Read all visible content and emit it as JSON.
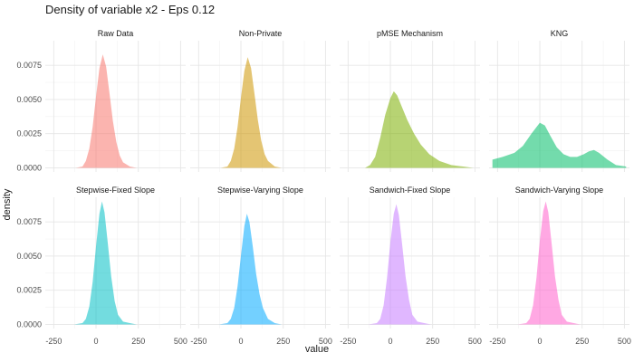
{
  "chart_data": {
    "type": "area",
    "title": "Density of variable x2 - Eps 0.12",
    "xlabel": "value",
    "ylabel": "density",
    "x_ticks": [
      -250,
      0,
      250,
      500
    ],
    "x_tick_labels": [
      "-250",
      "0",
      "250",
      "500"
    ],
    "y_ticks": [
      0,
      0.0025,
      0.005,
      0.0075
    ],
    "y_tick_labels": [
      "0.0000",
      "0.0025",
      "0.0050",
      "0.0075"
    ],
    "xlim": [
      -300,
      530
    ],
    "ylim": [
      -0.0003,
      0.0093
    ],
    "grid": true,
    "legend": "none",
    "facets": [
      {
        "label": "Raw Data",
        "color": "#F8766D",
        "points": [
          [
            -120,
            0
          ],
          [
            -80,
            0.0001
          ],
          [
            -60,
            0.0005
          ],
          [
            -40,
            0.0014
          ],
          [
            -20,
            0.003
          ],
          [
            0,
            0.0052
          ],
          [
            20,
            0.0073
          ],
          [
            40,
            0.0083
          ],
          [
            60,
            0.0074
          ],
          [
            80,
            0.0054
          ],
          [
            100,
            0.0034
          ],
          [
            120,
            0.0019
          ],
          [
            140,
            0.0009
          ],
          [
            160,
            0.0004
          ],
          [
            200,
            0.0001
          ],
          [
            240,
            0
          ]
        ]
      },
      {
        "label": "Non-Private",
        "color": "#CD9600",
        "points": [
          [
            -120,
            0
          ],
          [
            -80,
            0.0001
          ],
          [
            -60,
            0.0005
          ],
          [
            -40,
            0.0014
          ],
          [
            -20,
            0.003
          ],
          [
            0,
            0.0051
          ],
          [
            20,
            0.0071
          ],
          [
            40,
            0.0081
          ],
          [
            60,
            0.0073
          ],
          [
            80,
            0.0054
          ],
          [
            100,
            0.0035
          ],
          [
            120,
            0.002
          ],
          [
            140,
            0.001
          ],
          [
            160,
            0.0005
          ],
          [
            200,
            0.0001
          ],
          [
            240,
            0
          ]
        ]
      },
      {
        "label": "pMSE Mechanism",
        "color": "#7CAE00",
        "points": [
          [
            -150,
            0
          ],
          [
            -120,
            0.0002
          ],
          [
            -90,
            0.0008
          ],
          [
            -60,
            0.0022
          ],
          [
            -30,
            0.0039
          ],
          [
            0,
            0.0051
          ],
          [
            20,
            0.0056
          ],
          [
            40,
            0.0053
          ],
          [
            70,
            0.0044
          ],
          [
            100,
            0.0035
          ],
          [
            140,
            0.0025
          ],
          [
            180,
            0.0017
          ],
          [
            230,
            0.001
          ],
          [
            290,
            0.0005
          ],
          [
            360,
            0.0002
          ],
          [
            430,
            0.0001
          ],
          [
            490,
            0
          ]
        ]
      },
      {
        "label": "KNG",
        "color": "#00BE67",
        "points": [
          [
            -280,
            0.0006
          ],
          [
            -220,
            0.0008
          ],
          [
            -150,
            0.0011
          ],
          [
            -100,
            0.0016
          ],
          [
            -50,
            0.0025
          ],
          [
            0,
            0.0033
          ],
          [
            30,
            0.0031
          ],
          [
            60,
            0.0024
          ],
          [
            100,
            0.0015
          ],
          [
            140,
            0.001
          ],
          [
            180,
            0.0008
          ],
          [
            220,
            0.0008
          ],
          [
            260,
            0.001
          ],
          [
            290,
            0.0012
          ],
          [
            320,
            0.0013
          ],
          [
            350,
            0.0011
          ],
          [
            400,
            0.0006
          ],
          [
            450,
            0.0002
          ],
          [
            510,
            0.0001
          ]
        ]
      },
      {
        "label": "Stepwise-Fixed Slope",
        "color": "#00BFC4",
        "points": [
          [
            -130,
            0
          ],
          [
            -80,
            0.0001
          ],
          [
            -60,
            0.0004
          ],
          [
            -40,
            0.0013
          ],
          [
            -20,
            0.0031
          ],
          [
            0,
            0.0057
          ],
          [
            20,
            0.0081
          ],
          [
            35,
            0.009
          ],
          [
            50,
            0.0082
          ],
          [
            70,
            0.0059
          ],
          [
            90,
            0.0035
          ],
          [
            110,
            0.0017
          ],
          [
            130,
            0.0007
          ],
          [
            160,
            0.0002
          ],
          [
            200,
            0.0001
          ],
          [
            240,
            0
          ]
        ]
      },
      {
        "label": "Stepwise-Varying Slope",
        "color": "#00A9FF",
        "points": [
          [
            -130,
            0
          ],
          [
            -80,
            0.0001
          ],
          [
            -60,
            0.0004
          ],
          [
            -40,
            0.0012
          ],
          [
            -20,
            0.0028
          ],
          [
            0,
            0.005
          ],
          [
            20,
            0.0072
          ],
          [
            35,
            0.0081
          ],
          [
            50,
            0.0075
          ],
          [
            70,
            0.0057
          ],
          [
            90,
            0.0037
          ],
          [
            110,
            0.0022
          ],
          [
            130,
            0.0012
          ],
          [
            160,
            0.0004
          ],
          [
            200,
            0.0001
          ],
          [
            240,
            0
          ]
        ]
      },
      {
        "label": "Sandwich-Fixed Slope",
        "color": "#C77CFF",
        "points": [
          [
            -130,
            0
          ],
          [
            -80,
            0.0001
          ],
          [
            -60,
            0.0004
          ],
          [
            -40,
            0.0014
          ],
          [
            -20,
            0.0034
          ],
          [
            0,
            0.006
          ],
          [
            20,
            0.0081
          ],
          [
            35,
            0.0088
          ],
          [
            50,
            0.008
          ],
          [
            70,
            0.0058
          ],
          [
            90,
            0.0035
          ],
          [
            110,
            0.0018
          ],
          [
            130,
            0.0007
          ],
          [
            160,
            0.0002
          ],
          [
            200,
            0.0001
          ],
          [
            240,
            0
          ]
        ]
      },
      {
        "label": "Sandwich-Varying Slope",
        "color": "#FF61CC",
        "points": [
          [
            -130,
            0
          ],
          [
            -80,
            0.0001
          ],
          [
            -60,
            0.0004
          ],
          [
            -40,
            0.0014
          ],
          [
            -20,
            0.0034
          ],
          [
            0,
            0.0061
          ],
          [
            20,
            0.0083
          ],
          [
            35,
            0.009
          ],
          [
            50,
            0.0082
          ],
          [
            70,
            0.0059
          ],
          [
            90,
            0.0035
          ],
          [
            110,
            0.0018
          ],
          [
            130,
            0.0007
          ],
          [
            160,
            0.0002
          ],
          [
            200,
            0.0001
          ],
          [
            240,
            0
          ]
        ]
      }
    ]
  }
}
